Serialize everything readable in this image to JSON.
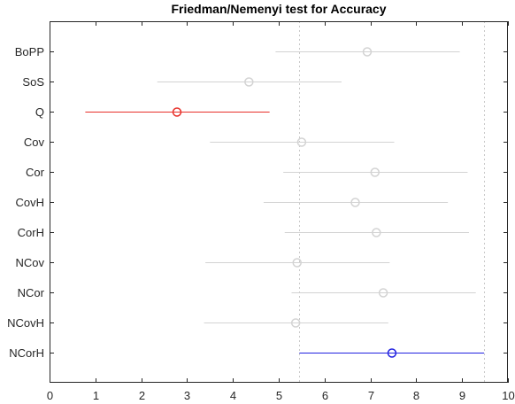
{
  "chart_data": {
    "type": "scatter",
    "title": "Friedman/Nemenyi test for Accuracy",
    "xlabel": "",
    "ylabel": "",
    "xlim": [
      0,
      10
    ],
    "x_ticks": [
      "0",
      "1",
      "2",
      "3",
      "4",
      "5",
      "6",
      "7",
      "8",
      "9",
      "10"
    ],
    "grid": false,
    "reference_lines": [
      5.45,
      9.48
    ],
    "series": [
      {
        "label": "BoPP",
        "mean_rank": 6.93,
        "ci": [
          4.93,
          8.95
        ],
        "color": "#d3d3d3"
      },
      {
        "label": "SoS",
        "mean_rank": 4.35,
        "ci": [
          2.35,
          6.37
        ],
        "color": "#d3d3d3"
      },
      {
        "label": "Q",
        "mean_rank": 2.78,
        "ci": [
          0.78,
          4.8
        ],
        "color": "#e8302a"
      },
      {
        "label": "Cov",
        "mean_rank": 5.5,
        "ci": [
          3.5,
          7.52
        ],
        "color": "#d3d3d3"
      },
      {
        "label": "Cor",
        "mean_rank": 7.1,
        "ci": [
          5.1,
          9.12
        ],
        "color": "#d3d3d3"
      },
      {
        "label": "CovH",
        "mean_rank": 6.67,
        "ci": [
          4.67,
          8.69
        ],
        "color": "#d3d3d3"
      },
      {
        "label": "CorH",
        "mean_rank": 7.13,
        "ci": [
          5.13,
          9.15
        ],
        "color": "#d3d3d3"
      },
      {
        "label": "NCov",
        "mean_rank": 5.4,
        "ci": [
          3.4,
          7.42
        ],
        "color": "#d3d3d3"
      },
      {
        "label": "NCor",
        "mean_rank": 7.28,
        "ci": [
          5.28,
          9.3
        ],
        "color": "#d3d3d3"
      },
      {
        "label": "NCovH",
        "mean_rank": 5.37,
        "ci": [
          3.37,
          7.39
        ],
        "color": "#d3d3d3"
      },
      {
        "label": "NCorH",
        "mean_rank": 7.47,
        "ci": [
          5.45,
          9.48
        ],
        "color": "#2020e0"
      }
    ]
  }
}
